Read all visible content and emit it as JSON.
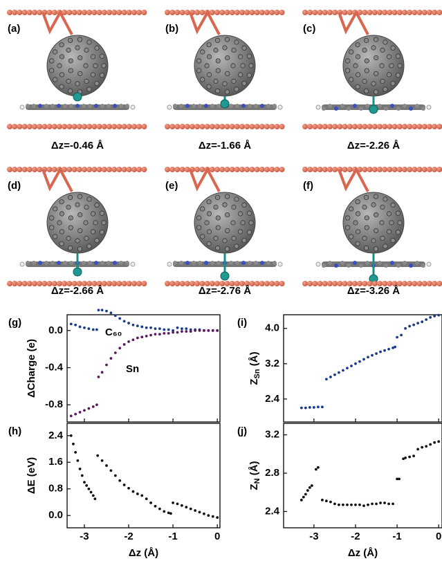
{
  "panels": [
    {
      "label": "(a)",
      "caption": "Δz=-0.46 Å"
    },
    {
      "label": "(b)",
      "caption": "Δz=-1.66 Å"
    },
    {
      "label": "(c)",
      "caption": "Δz=-2.26 Å"
    },
    {
      "label": "(d)",
      "caption": "Δz=-2.66 Å"
    },
    {
      "label": "(e)",
      "caption": "Δz=-2.76 Å"
    },
    {
      "label": "(f)",
      "caption": "Δz=-3.26 Å"
    }
  ],
  "chart_data": [
    {
      "type": "scatter",
      "panel_label": "(g)",
      "ylabel": {
        "main": "ΔCharge (e)"
      },
      "xlim": [
        -3.39,
        0.06
      ],
      "ylim": [
        -0.985,
        0.17
      ],
      "xticks": [
        -3,
        -2,
        -1,
        0
      ],
      "xtick_labels": false,
      "yticks": [
        -0.8,
        -0.4,
        {
          "value": 0,
          "label": "0.0"
        }
      ],
      "series": [
        {
          "name": "C₆₀",
          "color": "#1b3a8c",
          "x": [
            -3.3,
            -3.2,
            -3.1,
            -3.0,
            -2.9,
            -2.8,
            -2.72,
            -2.68,
            -2.6,
            -2.5,
            -2.4,
            -2.3,
            -2.2,
            -2.1,
            -2.0,
            -1.9,
            -1.8,
            -1.7,
            -1.6,
            -1.5,
            -1.4,
            -1.3,
            -1.2,
            -1.1,
            -1.0,
            -0.9,
            -0.8,
            -0.7,
            -0.6,
            -0.5,
            -0.4,
            -0.3,
            -0.2,
            -0.1,
            0.0
          ],
          "values": [
            0.07,
            0.06,
            0.04,
            0.03,
            0.02,
            0.01,
            0.01,
            0.22,
            0.22,
            0.21,
            0.19,
            0.16,
            0.13,
            0.1,
            0.08,
            0.06,
            0.05,
            0.04,
            0.03,
            0.03,
            0.02,
            0.02,
            0.01,
            0.01,
            0.0,
            0.03,
            0.02,
            0.02,
            0.01,
            0.01,
            0.01,
            0.0,
            0.0,
            0.0,
            0.0
          ]
        },
        {
          "name": "Sn",
          "color": "#5b1a5e",
          "x": [
            -3.3,
            -3.2,
            -3.1,
            -3.0,
            -2.9,
            -2.8,
            -2.72,
            -2.68,
            -2.6,
            -2.5,
            -2.4,
            -2.3,
            -2.2,
            -2.1,
            -2.0,
            -1.9,
            -1.8,
            -1.7,
            -1.6,
            -1.5,
            -1.4,
            -1.3,
            -1.2,
            -1.1,
            -1.0,
            -0.9,
            -0.8,
            -0.7,
            -0.6,
            -0.5,
            -0.4,
            -0.3,
            -0.2,
            -0.1,
            0.0
          ],
          "values": [
            -0.92,
            -0.9,
            -0.88,
            -0.86,
            -0.84,
            -0.82,
            -0.8,
            -0.5,
            -0.45,
            -0.37,
            -0.3,
            -0.24,
            -0.19,
            -0.15,
            -0.12,
            -0.1,
            -0.08,
            -0.07,
            -0.06,
            -0.05,
            -0.04,
            -0.04,
            -0.03,
            -0.03,
            -0.02,
            -0.02,
            -0.01,
            -0.01,
            -0.01,
            0,
            0,
            0,
            0,
            0,
            0
          ]
        }
      ]
    },
    {
      "type": "scatter",
      "panel_label": "(h)",
      "ylabel": {
        "main": "ΔE (eV)"
      },
      "xlabel": "Δz (Å)",
      "xlim": [
        -3.39,
        0.06
      ],
      "ylim": [
        -0.37,
        2.77
      ],
      "xticks": [
        -3,
        -2,
        -1,
        0
      ],
      "xtick_labels": true,
      "yticks": [
        {
          "value": 0,
          "label": "0.0"
        },
        0.8,
        1.6,
        2.4
      ],
      "series": [
        {
          "color": "#111111",
          "x": [
            -3.3,
            -3.25,
            -3.2,
            -3.15,
            -3.1,
            -3.05,
            -3.0,
            -2.95,
            -2.9,
            -2.85,
            -2.8,
            -2.76,
            -2.7,
            -2.6,
            -2.5,
            -2.4,
            -2.3,
            -2.2,
            -2.1,
            -2.0,
            -1.9,
            -1.8,
            -1.7,
            -1.6,
            -1.5,
            -1.4,
            -1.3,
            -1.2,
            -1.1,
            -1.05,
            -1.0,
            -0.9,
            -0.8,
            -0.7,
            -0.6,
            -0.5,
            -0.4,
            -0.3,
            -0.2,
            -0.1,
            0.0
          ],
          "values": [
            2.4,
            2.15,
            1.9,
            1.65,
            1.4,
            1.2,
            1.0,
            0.9,
            0.8,
            0.7,
            0.6,
            0.5,
            1.8,
            1.65,
            1.5,
            1.35,
            1.2,
            1.05,
            0.92,
            0.82,
            0.72,
            0.65,
            0.6,
            0.5,
            0.38,
            0.28,
            0.2,
            0.12,
            0.08,
            0.06,
            0.38,
            0.35,
            0.3,
            0.25,
            0.2,
            0.15,
            0.1,
            0.05,
            0.0,
            -0.03,
            -0.06
          ]
        }
      ]
    },
    {
      "type": "scatter",
      "panel_label": "(i)",
      "ylabel": {
        "main": "Z",
        "sub": "Sn",
        "unit": " (Å)"
      },
      "xlim": [
        -3.73,
        0.08
      ],
      "ylim": [
        1.88,
        4.31
      ],
      "xticks": [
        -3,
        -2,
        -1,
        0
      ],
      "xtick_labels": false,
      "yticks": [
        2.4,
        3.2,
        {
          "value": 4,
          "label": "4.0"
        }
      ],
      "series": [
        {
          "color": "#1b3a8c",
          "x": [
            -3.3,
            -3.2,
            -3.1,
            -3.0,
            -2.9,
            -2.8,
            -2.7,
            -2.6,
            -2.5,
            -2.4,
            -2.3,
            -2.2,
            -2.1,
            -2.0,
            -1.9,
            -1.8,
            -1.7,
            -1.6,
            -1.5,
            -1.4,
            -1.3,
            -1.2,
            -1.1,
            -1.05,
            -1.0,
            -0.9,
            -0.8,
            -0.7,
            -0.6,
            -0.5,
            -0.4,
            -0.3,
            -0.2,
            -0.1,
            0.0
          ],
          "values": [
            2.2,
            2.2,
            2.21,
            2.21,
            2.22,
            2.22,
            2.85,
            2.9,
            2.95,
            3.0,
            3.05,
            3.1,
            3.15,
            3.2,
            3.25,
            3.3,
            3.35,
            3.39,
            3.43,
            3.47,
            3.5,
            3.53,
            3.56,
            3.58,
            3.8,
            3.85,
            4.0,
            4.05,
            4.08,
            4.12,
            4.15,
            4.2,
            4.25,
            4.28,
            4.3
          ]
        }
      ]
    },
    {
      "type": "scatter",
      "panel_label": "(j)",
      "ylabel": {
        "main": "Z",
        "sub": "N",
        "unit": " (Å)"
      },
      "xlabel": "Δz (Å)",
      "xlim": [
        -3.73,
        0.08
      ],
      "ylim": [
        2.23,
        3.32
      ],
      "xticks": [
        -3,
        -2,
        -1,
        0
      ],
      "xtick_labels": true,
      "yticks": [
        2.4,
        2.8,
        3.2
      ],
      "series": [
        {
          "color": "#111111",
          "x": [
            -3.3,
            -3.25,
            -3.2,
            -3.15,
            -3.1,
            -3.05,
            -2.95,
            -2.9,
            -2.8,
            -2.7,
            -2.6,
            -2.5,
            -2.4,
            -2.3,
            -2.2,
            -2.1,
            -2.0,
            -1.9,
            -1.8,
            -1.7,
            -1.6,
            -1.5,
            -1.4,
            -1.3,
            -1.2,
            -1.1,
            -1.0,
            -0.95,
            -0.85,
            -0.8,
            -0.7,
            -0.6,
            -0.5,
            -0.4,
            -0.3,
            -0.2,
            -0.1,
            0.0
          ],
          "values": [
            2.52,
            2.55,
            2.58,
            2.62,
            2.65,
            2.67,
            2.84,
            2.86,
            2.52,
            2.51,
            2.5,
            2.48,
            2.47,
            2.47,
            2.47,
            2.47,
            2.47,
            2.47,
            2.46,
            2.47,
            2.48,
            2.48,
            2.49,
            2.49,
            2.48,
            2.48,
            2.74,
            2.74,
            2.95,
            2.96,
            2.97,
            2.98,
            3.05,
            3.07,
            3.08,
            3.1,
            3.12,
            3.13
          ]
        }
      ]
    }
  ]
}
